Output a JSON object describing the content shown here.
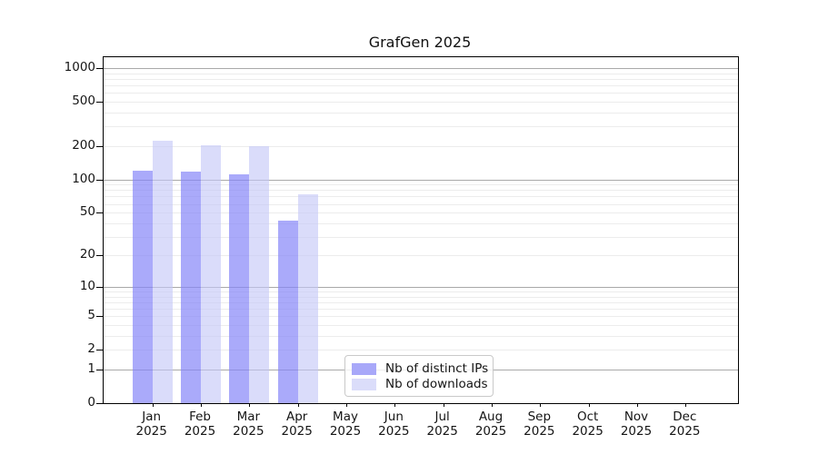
{
  "chart_data": {
    "type": "bar",
    "title": "GrafGen 2025",
    "categories": [
      "Jan",
      "Feb",
      "Mar",
      "Apr",
      "May",
      "Jun",
      "Jul",
      "Aug",
      "Sep",
      "Oct",
      "Nov",
      "Dec"
    ],
    "year_label": "2025",
    "series": [
      {
        "name": "Nb of distinct IPs",
        "values": [
          121,
          117,
          111,
          42,
          0,
          0,
          0,
          0,
          0,
          0,
          0,
          0
        ],
        "color": "rgba(134,134,248,0.70)",
        "legend_color": "#a8a8f9"
      },
      {
        "name": "Nb of downloads",
        "values": [
          224,
          204,
          201,
          74,
          0,
          0,
          0,
          0,
          0,
          0,
          0,
          0
        ],
        "color": "rgba(196,199,247,0.62)",
        "legend_color": "#dbddfa"
      }
    ],
    "xlabel": "",
    "ylabel": "",
    "yscale": "log10(1+y)",
    "y_ticks": [
      0,
      1,
      2,
      5,
      10,
      20,
      50,
      100,
      200,
      500,
      1000
    ],
    "ylim": [
      0,
      1267
    ],
    "grid": {
      "major": [
        1,
        10,
        100,
        1000
      ],
      "minor": [
        2,
        3,
        4,
        5,
        6,
        7,
        8,
        9,
        20,
        30,
        40,
        50,
        60,
        70,
        80,
        90,
        200,
        300,
        400,
        500,
        600,
        700,
        800,
        900
      ]
    },
    "legend_position": "lower center"
  },
  "colors": {
    "background": "#ffffff",
    "axis": "#000000",
    "text": "#151515",
    "major_grid": "#a9a9a9",
    "minor_grid": "#ececec",
    "legend_border": "#c9c9c9",
    "legend_bg": "rgba(255,255,255,0.8)"
  }
}
